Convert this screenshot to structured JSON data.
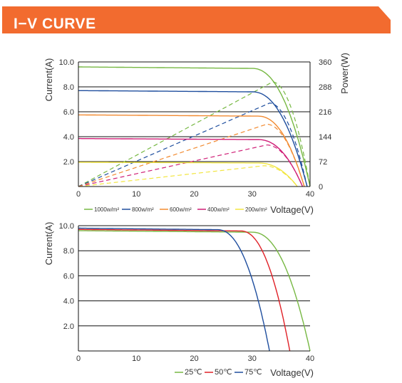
{
  "header": {
    "title": "I−V CURVE",
    "accent_color": "#f26b2f"
  },
  "chart_data": [
    {
      "type": "line",
      "xlabel": "Voltage(V)",
      "ylabel": "Current(A)",
      "y2label": "Power(W)",
      "xlim": [
        0,
        40
      ],
      "ylim": [
        0,
        10
      ],
      "y2lim": [
        0,
        360
      ],
      "x_ticks": [
        "0",
        "10",
        "20",
        "30",
        "40"
      ],
      "y_ticks": [
        "2.0",
        "4.0",
        "6.0",
        "8.0",
        "10.0"
      ],
      "y2_ticks": [
        "0",
        "72",
        "144",
        "216",
        "288",
        "360"
      ],
      "grid": "horizontal",
      "legend_position": "bottom",
      "series": [
        {
          "name": "1000w/m²",
          "color": "#77b843",
          "current": {
            "isc": 9.6,
            "voc": 40.0,
            "knee": 30,
            "droop": 0.12
          },
          "power": {
            "pmax_v": 33.5,
            "pmax": 302
          }
        },
        {
          "name": "800w/m²",
          "color": "#1f4e9e",
          "current": {
            "isc": 7.7,
            "voc": 39.5,
            "knee": 30,
            "droop": 0.1
          },
          "power": {
            "pmax_v": 33.0,
            "pmax": 241
          }
        },
        {
          "name": "600w/m²",
          "color": "#f28a30",
          "current": {
            "isc": 5.75,
            "voc": 39.0,
            "knee": 31,
            "droop": 0.1
          },
          "power": {
            "pmax_v": 32.5,
            "pmax": 180
          }
        },
        {
          "name": "400w/m²",
          "color": "#cf1d76",
          "current": {
            "isc": 3.85,
            "voc": 38.7,
            "knee": 31,
            "droop": 0.08
          },
          "power": {
            "pmax_v": 32.5,
            "pmax": 120
          }
        },
        {
          "name": "200w/m²",
          "color": "#f2e640",
          "current": {
            "isc": 1.95,
            "voc": 37.8,
            "knee": 31,
            "droop": 0.06
          },
          "power": {
            "pmax_v": 32.0,
            "pmax": 60
          }
        }
      ]
    },
    {
      "type": "line",
      "xlabel": "Voltage(V)",
      "ylabel": "Current(A)",
      "xlim": [
        0,
        40
      ],
      "ylim": [
        0,
        10
      ],
      "x_ticks": [
        "0",
        "10",
        "20",
        "30",
        "40"
      ],
      "y_ticks": [
        "2.0",
        "4.0",
        "6.0",
        "8.0",
        "10.0"
      ],
      "grid": "horizontal",
      "legend_position": "bottom",
      "series": [
        {
          "name": "25℃",
          "color": "#77b843",
          "current": {
            "isc": 9.6,
            "voc": 40.0,
            "knee": 30,
            "droop": 0.12
          }
        },
        {
          "name": "50℃",
          "color": "#e02027",
          "current": {
            "isc": 9.7,
            "voc": 36.5,
            "knee": 28,
            "droop": 0.12
          }
        },
        {
          "name": "75℃",
          "color": "#1f4e9e",
          "current": {
            "isc": 9.8,
            "voc": 33.0,
            "knee": 24,
            "droop": 0.12
          }
        }
      ]
    }
  ]
}
